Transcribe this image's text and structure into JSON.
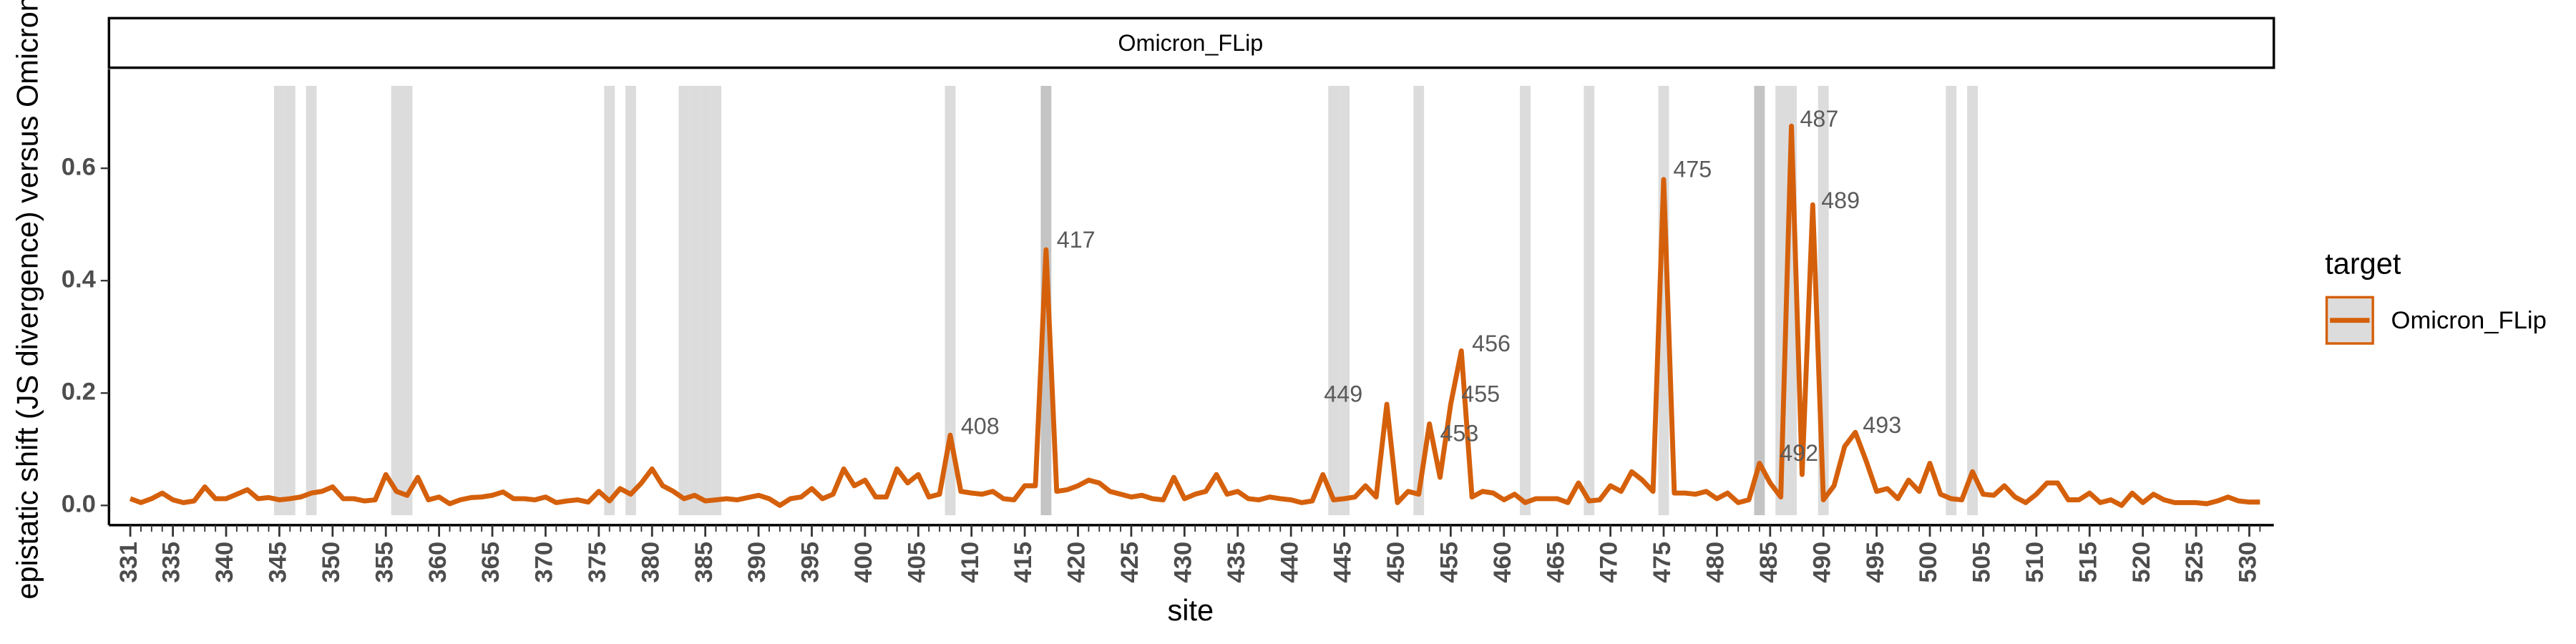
{
  "chart_data": {
    "type": "line",
    "facet": "Omicron_FLip",
    "xlabel": "site",
    "ylabel": "epistatic shift (JS divergence) versus Omicron",
    "legend_title": "target",
    "legend": "right",
    "xlim": [
      329,
      532.3
    ],
    "ylim": [
      -0.035,
      0.776
    ],
    "xticks": [
      331,
      335,
      340,
      345,
      350,
      355,
      360,
      365,
      370,
      375,
      380,
      385,
      390,
      395,
      400,
      405,
      410,
      415,
      420,
      425,
      430,
      435,
      440,
      445,
      450,
      455,
      460,
      465,
      470,
      475,
      480,
      485,
      490,
      495,
      500,
      505,
      510,
      515,
      520,
      525,
      530
    ],
    "yticks": [
      {
        "value": 0,
        "label": "0.0"
      },
      0.2,
      0.4,
      0.6
    ],
    "shade_color": "#dcdcdc",
    "dark_shade_color": "#c4c4c4",
    "shaded_sites": [
      345,
      346,
      348,
      356,
      357,
      376,
      378,
      383,
      384,
      385,
      386,
      408,
      444,
      445,
      452,
      462,
      468,
      475,
      486,
      487,
      490,
      502,
      504
    ],
    "dark_shaded_sites": [
      417,
      484
    ],
    "x": [
      331,
      332,
      333,
      334,
      335,
      336,
      337,
      338,
      339,
      340,
      341,
      342,
      343,
      344,
      345,
      346,
      347,
      348,
      349,
      350,
      351,
      352,
      353,
      354,
      355,
      356,
      357,
      358,
      359,
      360,
      361,
      362,
      363,
      364,
      365,
      366,
      367,
      368,
      369,
      370,
      371,
      372,
      373,
      374,
      375,
      376,
      377,
      378,
      379,
      380,
      381,
      382,
      383,
      384,
      385,
      386,
      387,
      388,
      389,
      390,
      391,
      392,
      393,
      394,
      395,
      396,
      397,
      398,
      399,
      400,
      401,
      402,
      403,
      404,
      405,
      406,
      407,
      408,
      409,
      410,
      411,
      412,
      413,
      414,
      415,
      416,
      417,
      418,
      419,
      420,
      421,
      422,
      423,
      424,
      425,
      426,
      427,
      428,
      429,
      430,
      431,
      432,
      433,
      434,
      435,
      436,
      437,
      438,
      439,
      440,
      441,
      442,
      443,
      444,
      445,
      446,
      447,
      448,
      449,
      450,
      451,
      452,
      453,
      454,
      455,
      456,
      457,
      458,
      459,
      460,
      461,
      462,
      463,
      464,
      465,
      466,
      467,
      468,
      469,
      470,
      471,
      472,
      473,
      474,
      475,
      476,
      477,
      478,
      479,
      480,
      481,
      482,
      483,
      484,
      485,
      486,
      487,
      488,
      489,
      490,
      491,
      492,
      493,
      494,
      495,
      496,
      497,
      498,
      499,
      500,
      501,
      502,
      503,
      504,
      505,
      506,
      507,
      508,
      509,
      510,
      511,
      512,
      513,
      514,
      515,
      516,
      517,
      518,
      519,
      520,
      521,
      522,
      523,
      524,
      525,
      526,
      527,
      528,
      529,
      530,
      531
    ],
    "series": [
      {
        "name": "Omicron_FLip",
        "color": "#d5600b",
        "values": [
          0.012,
          0.005,
          0.012,
          0.022,
          0.01,
          0.005,
          0.008,
          0.033,
          0.012,
          0.012,
          0.02,
          0.028,
          0.012,
          0.014,
          0.01,
          0.012,
          0.015,
          0.022,
          0.025,
          0.033,
          0.012,
          0.012,
          0.008,
          0.01,
          0.055,
          0.025,
          0.018,
          0.05,
          0.01,
          0.015,
          0.003,
          0.01,
          0.014,
          0.015,
          0.018,
          0.024,
          0.012,
          0.012,
          0.01,
          0.015,
          0.005,
          0.008,
          0.01,
          0.006,
          0.025,
          0.008,
          0.03,
          0.02,
          0.04,
          0.065,
          0.035,
          0.025,
          0.012,
          0.018,
          0.008,
          0.01,
          0.012,
          0.01,
          0.014,
          0.018,
          0.012,
          0.0,
          0.012,
          0.015,
          0.03,
          0.012,
          0.02,
          0.065,
          0.035,
          0.045,
          0.015,
          0.015,
          0.065,
          0.04,
          0.055,
          0.015,
          0.02,
          0.125,
          0.025,
          0.022,
          0.02,
          0.025,
          0.012,
          0.01,
          0.035,
          0.035,
          0.455,
          0.025,
          0.028,
          0.035,
          0.045,
          0.04,
          0.025,
          0.02,
          0.015,
          0.018,
          0.012,
          0.01,
          0.05,
          0.012,
          0.02,
          0.025,
          0.055,
          0.02,
          0.025,
          0.012,
          0.01,
          0.015,
          0.012,
          0.01,
          0.005,
          0.008,
          0.055,
          0.01,
          0.012,
          0.015,
          0.035,
          0.015,
          0.18,
          0.005,
          0.025,
          0.02,
          0.145,
          0.05,
          0.18,
          0.275,
          0.015,
          0.025,
          0.022,
          0.01,
          0.02,
          0.005,
          0.012,
          0.012,
          0.012,
          0.005,
          0.04,
          0.008,
          0.01,
          0.035,
          0.025,
          0.06,
          0.045,
          0.025,
          0.58,
          0.022,
          0.022,
          0.02,
          0.025,
          0.012,
          0.022,
          0.005,
          0.01,
          0.075,
          0.04,
          0.015,
          0.675,
          0.055,
          0.535,
          0.01,
          0.035,
          0.105,
          0.13,
          0.08,
          0.025,
          0.03,
          0.012,
          0.045,
          0.025,
          0.075,
          0.02,
          0.012,
          0.01,
          0.06,
          0.02,
          0.018,
          0.035,
          0.015,
          0.005,
          0.02,
          0.04,
          0.04,
          0.01,
          0.01,
          0.022,
          0.005,
          0.01,
          0.0,
          0.022,
          0.005,
          0.02,
          0.01,
          0.005,
          0.005,
          0.005,
          0.003,
          0.008,
          0.015,
          0.008,
          0.006,
          0.006
        ]
      }
    ],
    "annotations": [
      {
        "text": "408",
        "x": 409.0,
        "y": 0.138
      },
      {
        "text": "417",
        "x": 418.0,
        "y": 0.47
      },
      {
        "text": "449",
        "x": 443.1,
        "y": 0.195
      },
      {
        "text": "453",
        "x": 454.0,
        "y": 0.125
      },
      {
        "text": "455",
        "x": 456.0,
        "y": 0.195
      },
      {
        "text": "456",
        "x": 457.0,
        "y": 0.285
      },
      {
        "text": "475",
        "x": 475.9,
        "y": 0.595
      },
      {
        "text": "487",
        "x": 487.8,
        "y": 0.685
      },
      {
        "text": "489",
        "x": 489.8,
        "y": 0.54
      },
      {
        "text": "492",
        "x": 485.9,
        "y": 0.09
      },
      {
        "text": "493",
        "x": 493.7,
        "y": 0.14
      }
    ]
  }
}
